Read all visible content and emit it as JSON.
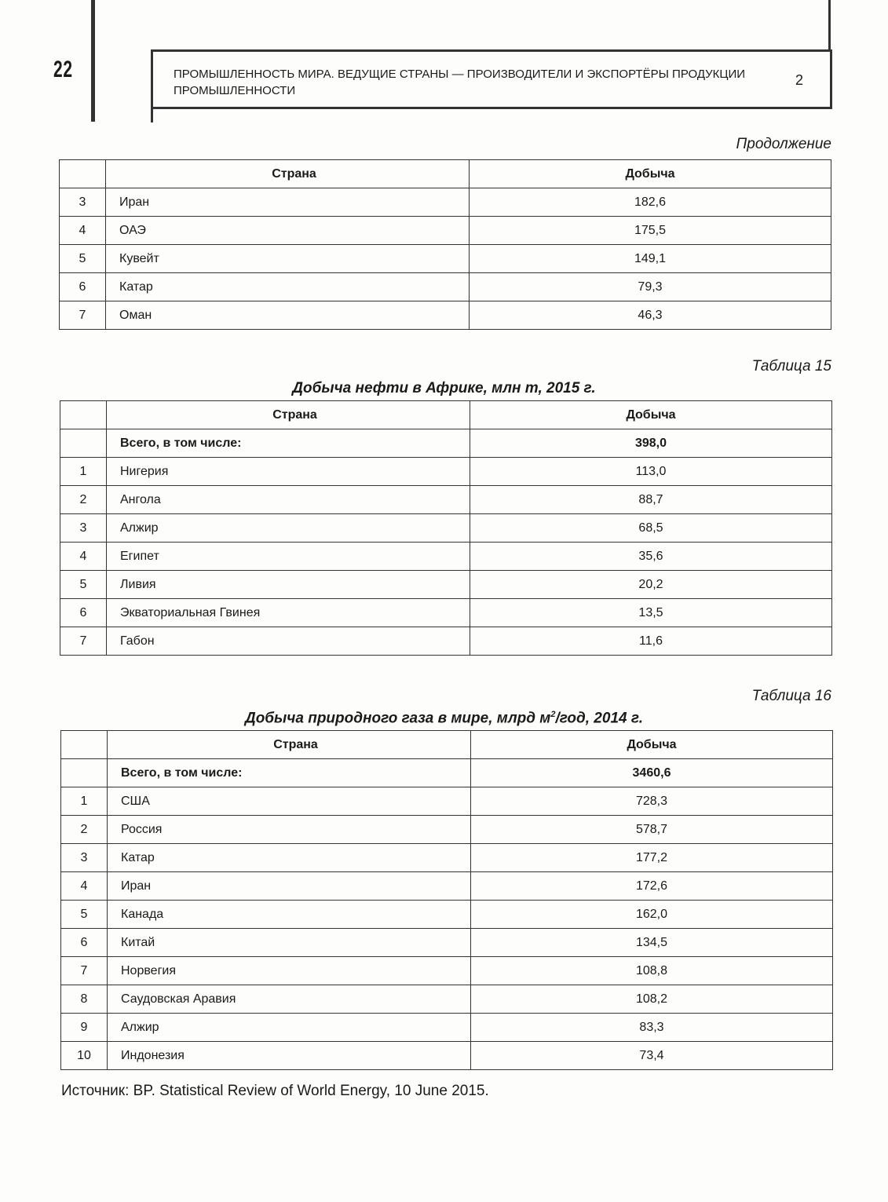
{
  "header": {
    "page_number": "22",
    "running_title": "ПРОМЫШЛЕННОСТЬ МИРА. ВЕДУЩИЕ СТРАНЫ — ПРОИЗВОДИТЕЛИ И ЭКСПОРТЁРЫ ПРОДУКЦИИ ПРОМЫШЛЕННОСТИ",
    "chapter": "2"
  },
  "continuation_label": "Продолжение",
  "tables": [
    {
      "label": "",
      "title": "",
      "columns": [
        "",
        "Страна",
        "Добыча"
      ],
      "total": null,
      "rows": [
        [
          "3",
          "Иран",
          "182,6"
        ],
        [
          "4",
          "ОАЭ",
          "175,5"
        ],
        [
          "5",
          "Кувейт",
          "149,1"
        ],
        [
          "6",
          "Катар",
          "79,3"
        ],
        [
          "7",
          "Оман",
          "46,3"
        ]
      ]
    },
    {
      "label": "Таблица 15",
      "title": "Добыча нефти в Африке, млн т, 2015 г.",
      "columns": [
        "",
        "Страна",
        "Добыча"
      ],
      "total": [
        "",
        "Всего, в том числе:",
        "398,0"
      ],
      "rows": [
        [
          "1",
          "Нигерия",
          "113,0"
        ],
        [
          "2",
          "Ангола",
          "88,7"
        ],
        [
          "3",
          "Алжир",
          "68,5"
        ],
        [
          "4",
          "Египет",
          "35,6"
        ],
        [
          "5",
          "Ливия",
          "20,2"
        ],
        [
          "6",
          "Экваториальная Гвинея",
          "13,5"
        ],
        [
          "7",
          "Габон",
          "11,6"
        ]
      ]
    },
    {
      "label": "Таблица 16",
      "title_parts": {
        "before": "Добыча природного газа в мире, млрд м",
        "sup": "2",
        "after": "/год, 2014 г."
      },
      "columns": [
        "",
        "Страна",
        "Добыча"
      ],
      "total": [
        "",
        "Всего, в том числе:",
        "3460,6"
      ],
      "rows": [
        [
          "1",
          "США",
          "728,3"
        ],
        [
          "2",
          "Россия",
          "578,7"
        ],
        [
          "3",
          "Катар",
          "177,2"
        ],
        [
          "4",
          "Иран",
          "172,6"
        ],
        [
          "5",
          "Канада",
          "162,0"
        ],
        [
          "6",
          "Китай",
          "134,5"
        ],
        [
          "7",
          "Норвегия",
          "108,8"
        ],
        [
          "8",
          "Саудовская Аравия",
          "108,2"
        ],
        [
          "9",
          "Алжир",
          "83,3"
        ],
        [
          "10",
          "Индонезия",
          "73,4"
        ]
      ]
    }
  ],
  "source": "Источник: BP. Statistical Review of World Energy, 10 June 2015."
}
